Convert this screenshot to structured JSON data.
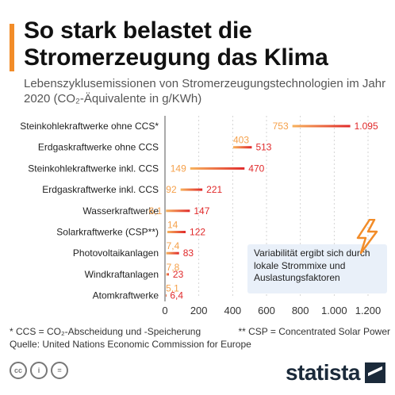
{
  "header": {
    "title": "So stark belastet die Stromerzeugung das Klima",
    "subtitle": "Lebenszyklusemissionen von Stromerzeugungstechnologien im Jahr 2020 (CO₂-Äquivalente in g/KWh)"
  },
  "colors": {
    "accent": "#f28c28",
    "min_label": "#f5a04a",
    "max_label": "#e0292a",
    "line_from": "#f7b25c",
    "line_to": "#e0292a",
    "callout_bg": "#e9f0f9",
    "bolt": "#f28c28"
  },
  "chart_data": {
    "type": "dumbbell",
    "xlim": [
      0,
      1200
    ],
    "xticks": [
      0,
      200,
      400,
      600,
      800,
      1000,
      1200
    ],
    "xtick_labels": [
      "0",
      "200",
      "400",
      "600",
      "800",
      "1.000",
      "1.200"
    ],
    "categories": [
      "Steinkohlekraftwerke ohne CCS*",
      "Erdgaskraftwerke ohne CCS",
      "Steinkohlekraftwerke inkl. CCS",
      "Erdgaskraftwerke inkl. CCS",
      "Wasserkraftwerke",
      "Solarkraftwerke (CSP**)",
      "Photovoltaikanlagen",
      "Windkraftanlagen",
      "Atomkraftwerke"
    ],
    "series": [
      {
        "values": [
          753,
          403,
          149,
          92,
          6.1,
          14,
          7.4,
          7.8,
          5.1
        ],
        "labels": [
          "753",
          "403",
          "149",
          "92",
          "6,1",
          "14",
          "7,4",
          "7,8",
          "5,1"
        ]
      },
      {
        "values": [
          1095,
          513,
          470,
          221,
          147,
          122,
          83,
          23,
          6.4
        ],
        "labels": [
          "1.095",
          "513",
          "470",
          "221",
          "147",
          "122",
          "83",
          "23",
          "6,4"
        ]
      }
    ],
    "annotation": "Variabilität ergibt sich durch lokale Strommixe und Auslastungsfaktoren"
  },
  "footer": {
    "note_ccs": "* CCS = CO₂-Abscheidung und -Speicherung",
    "note_csp": "** CSP = Concentrated Solar Power",
    "source": "Quelle: United Nations Economic Commission for Europe",
    "license_icons": [
      "cc-icon",
      "by-icon",
      "nd-icon"
    ],
    "license_glyphs": [
      "cc",
      "i",
      "="
    ],
    "brand": "statista"
  }
}
